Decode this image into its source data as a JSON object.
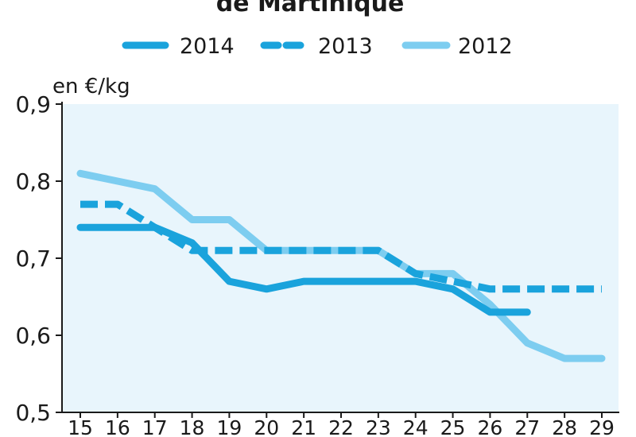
{
  "chart_data": {
    "type": "line",
    "title": "de Martinique",
    "ylabel": "en €/kg",
    "xlabel": "",
    "ylim": [
      0.5,
      0.9
    ],
    "xlim": [
      15,
      29
    ],
    "y_ticks": [
      "0,5",
      "0,6",
      "0,7",
      "0,8",
      "0,9"
    ],
    "x": [
      15,
      16,
      17,
      18,
      19,
      20,
      21,
      22,
      23,
      24,
      25,
      26,
      27,
      28,
      29
    ],
    "x_ticks": [
      "15",
      "16",
      "17",
      "18",
      "19",
      "20",
      "21",
      "22",
      "23",
      "24",
      "25",
      "26",
      "27",
      "28",
      "29"
    ],
    "legend_position": "top",
    "plot_background": "#e8f5fc",
    "grid": false,
    "series": [
      {
        "name": "2014",
        "style": "solid",
        "color": "#1aa3dc",
        "values": [
          0.74,
          0.74,
          0.74,
          0.72,
          0.67,
          0.66,
          0.67,
          0.67,
          0.67,
          0.67,
          0.66,
          0.63,
          0.63,
          null,
          null
        ]
      },
      {
        "name": "2013",
        "style": "dashed",
        "color": "#1aa3dc",
        "values": [
          0.77,
          0.77,
          0.74,
          0.71,
          0.71,
          0.71,
          0.71,
          0.71,
          0.71,
          0.68,
          0.67,
          0.66,
          0.66,
          0.66,
          0.66
        ]
      },
      {
        "name": "2012",
        "style": "solid",
        "color": "#7dcdf0",
        "values": [
          0.81,
          0.8,
          0.79,
          0.75,
          0.75,
          0.71,
          0.71,
          0.71,
          0.71,
          0.68,
          0.68,
          0.64,
          0.59,
          0.57,
          0.57
        ]
      }
    ]
  }
}
